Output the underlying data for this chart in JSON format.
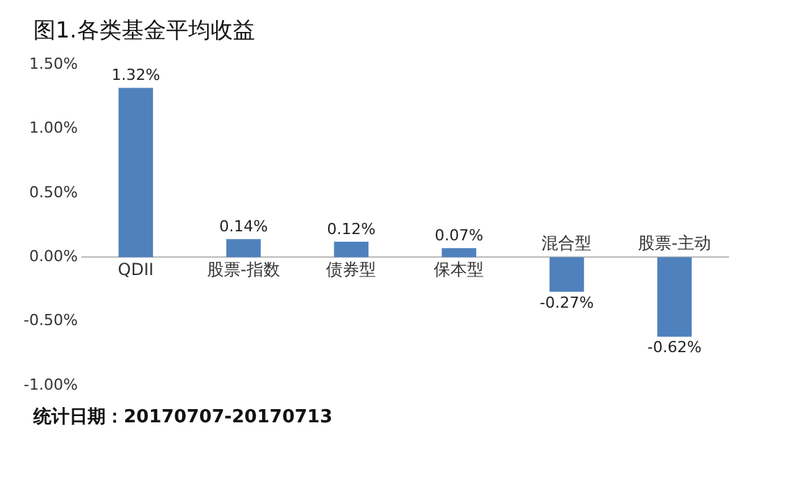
{
  "chart_data": {
    "type": "bar",
    "title": "图1.各类基金平均收益",
    "categories": [
      "QDII",
      "股票-指数",
      "债券型",
      "保本型",
      "混合型",
      "股票-主动"
    ],
    "values": [
      1.32,
      0.14,
      0.12,
      0.07,
      -0.27,
      -0.62
    ],
    "value_labels": [
      "1.32%",
      "0.14%",
      "0.12%",
      "0.07%",
      "-0.27%",
      "-0.62%"
    ],
    "color": "#4f81bd",
    "ylim": [
      -1,
      1.5
    ],
    "yticks": [
      {
        "value": -1,
        "label": "-1.00%"
      },
      {
        "value": -0.5,
        "label": "-0.50%"
      },
      {
        "value": 0,
        "label": "0.00%"
      },
      {
        "value": 0.5,
        "label": "0.50%"
      },
      {
        "value": 1,
        "label": "1.00%"
      },
      {
        "value": 1.5,
        "label": "1.50%"
      }
    ],
    "grid": false,
    "legend": false,
    "annotations": [
      "统计日期：20170707-20170713"
    ]
  }
}
